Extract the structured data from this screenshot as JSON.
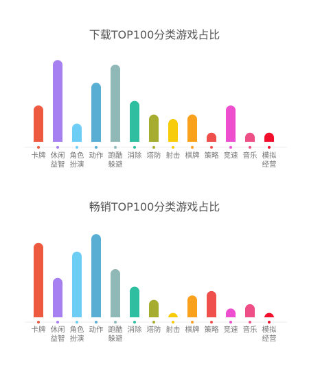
{
  "chart_data": [
    {
      "type": "bar",
      "title": "下载TOP100分类游戏占比",
      "categories": [
        [
          "卡牌"
        ],
        [
          "休闲",
          "益智"
        ],
        [
          "角色",
          "扮演"
        ],
        [
          "动作"
        ],
        [
          "跑酷",
          "躲避"
        ],
        [
          "消除"
        ],
        [
          "塔防"
        ],
        [
          "射击"
        ],
        [
          "棋牌"
        ],
        [
          "策略"
        ],
        [
          "竞速"
        ],
        [
          "音乐"
        ],
        [
          "模拟",
          "经营"
        ]
      ],
      "values": [
        8,
        18,
        4,
        13,
        17,
        9,
        6,
        5,
        6,
        2,
        8,
        2,
        2
      ],
      "ylim": [
        0,
        18.5
      ],
      "grid": false,
      "legend": "none"
    },
    {
      "type": "bar",
      "title": "畅销TOP100分类游戏占比",
      "categories": [
        [
          "卡牌"
        ],
        [
          "休闲",
          "益智"
        ],
        [
          "角色",
          "扮演"
        ],
        [
          "动作"
        ],
        [
          "跑酷",
          "躲避"
        ],
        [
          "消除"
        ],
        [
          "塔防"
        ],
        [
          "射击"
        ],
        [
          "棋牌"
        ],
        [
          "策略"
        ],
        [
          "竞速"
        ],
        [
          "音乐"
        ],
        [
          "模拟",
          "经营"
        ]
      ],
      "values": [
        17,
        9,
        15,
        19,
        11,
        7,
        4,
        1,
        5,
        6,
        2,
        3,
        1
      ],
      "ylim": [
        0,
        19.5
      ],
      "grid": false,
      "legend": "none"
    }
  ],
  "colors": [
    "#ee5a3f",
    "#a67ff0",
    "#6dcdf5",
    "#59aed3",
    "#8fb8b7",
    "#2fbfa0",
    "#a6ad2e",
    "#f7cc0a",
    "#f9a01c",
    "#f0504b",
    "#ee4fcf",
    "#ee4f86",
    "#f20f2c"
  ]
}
